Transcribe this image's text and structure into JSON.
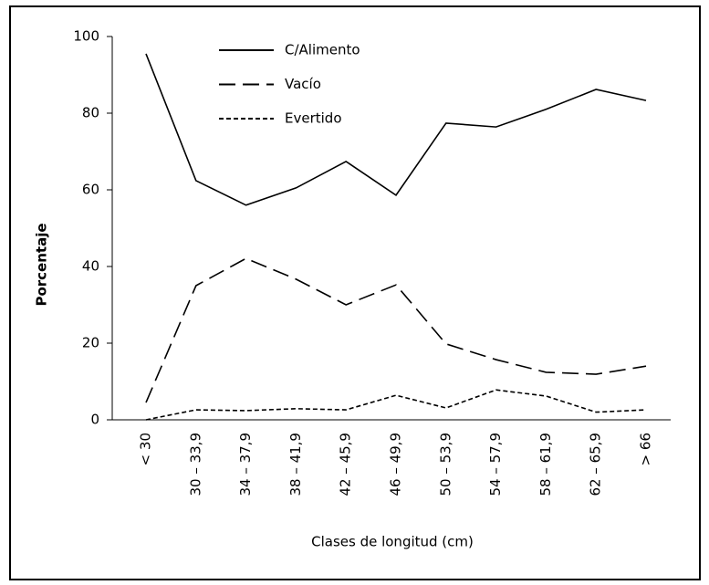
{
  "chart_data": {
    "type": "line",
    "xlabel": "Clases de longitud (cm)",
    "ylabel": "Porcentaje",
    "categories": [
      "< 30",
      "30 – 33,9",
      "34 – 37,9",
      "38 – 41,9",
      "42 – 45,9",
      "46 – 49,9",
      "50 – 53,9",
      "54 – 57,9",
      "58 – 61,9",
      "62 – 65,9",
      "> 66"
    ],
    "series": [
      {
        "name": "C/Alimento",
        "color": "#000000",
        "dash": "solid",
        "values": [
          95.5,
          62.4,
          56,
          60.5,
          67.4,
          58.6,
          77.4,
          76.4,
          81,
          86.2,
          83.3
        ]
      },
      {
        "name": "Vacío",
        "color": "#000000",
        "dash": "dashed",
        "values": [
          4.5,
          35,
          42.1,
          36.7,
          30,
          35.2,
          19.8,
          15.7,
          12.4,
          11.9,
          14
        ]
      },
      {
        "name": "Evertido",
        "color": "#000000",
        "dash": "dotted",
        "values": [
          0,
          2.6,
          2.4,
          2.9,
          2.6,
          6.4,
          3.1,
          7.8,
          6.2,
          2,
          2.6
        ]
      }
    ],
    "ylim": [
      0,
      100
    ],
    "yticks": [
      0,
      20,
      40,
      60,
      80,
      100
    ],
    "grid": false,
    "legend": "top"
  }
}
